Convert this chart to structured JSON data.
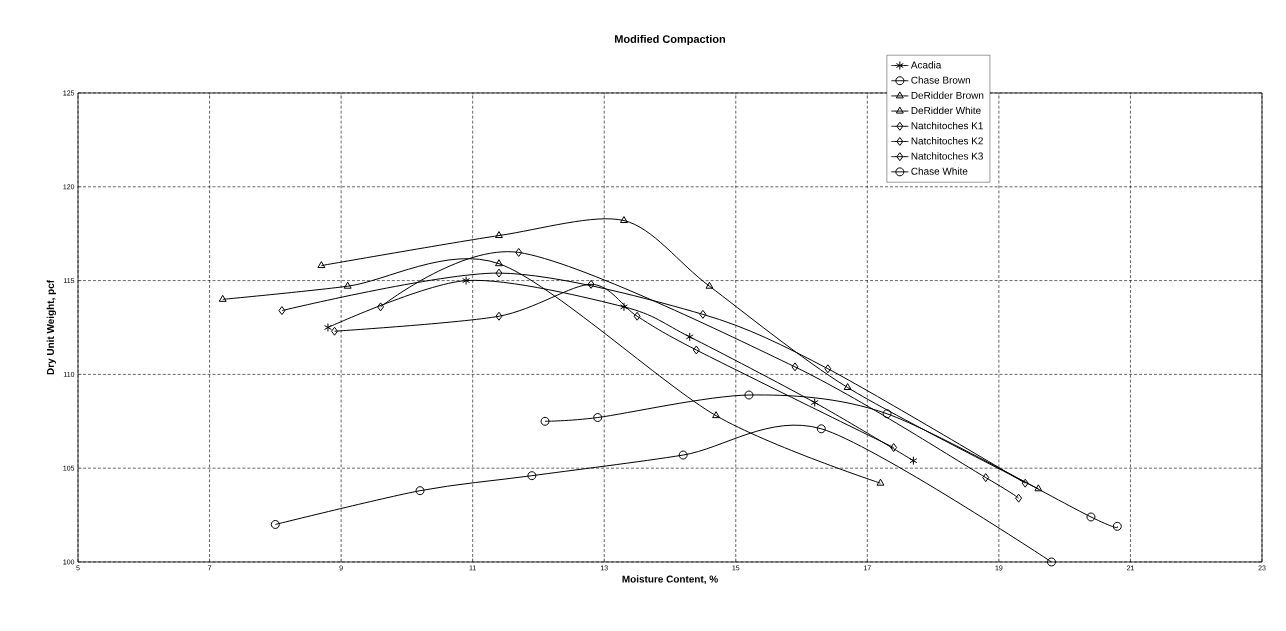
{
  "chart_data": {
    "type": "line",
    "title": "Modified Compaction",
    "xlabel": "Moisture Content, %",
    "ylabel": "Dry Unit Weight, pcf",
    "xlim": [
      5,
      23
    ],
    "xticks": [
      5,
      7,
      9,
      11,
      13,
      15,
      17,
      19,
      21,
      23
    ],
    "ylim": [
      100,
      125
    ],
    "yticks": [
      100,
      105,
      110,
      115,
      120,
      125
    ],
    "grid": true,
    "legend": "top right",
    "series": [
      {
        "name": "Acadia",
        "color": "#000000",
        "marker": "cross",
        "x": [
          8.8,
          10.9,
          13.3,
          14.3,
          16.2,
          17.7
        ],
        "values": [
          112.5,
          115.0,
          113.6,
          112.0,
          108.5,
          105.4
        ]
      },
      {
        "name": "Chase Brown",
        "color": "#000000",
        "marker": "circle",
        "x": [
          12.1,
          12.9,
          15.2,
          17.3,
          20.4,
          20.8
        ],
        "values": [
          107.5,
          107.7,
          108.9,
          107.9,
          102.4,
          101.9
        ]
      },
      {
        "name": "DeRidder Brown",
        "color": "#000000",
        "marker": "triangle",
        "x": [
          8.7,
          11.4,
          13.3,
          14.6,
          16.7,
          19.6
        ],
        "values": [
          115.8,
          117.4,
          118.2,
          114.7,
          109.3,
          103.9
        ]
      },
      {
        "name": "DeRidder White",
        "color": "#000000",
        "marker": "triangle",
        "x": [
          7.2,
          9.1,
          11.4,
          14.7,
          17.2
        ],
        "values": [
          114.0,
          114.7,
          115.9,
          107.8,
          104.2
        ]
      },
      {
        "name": "Natchitoches K1",
        "color": "#000000",
        "marker": "diamond",
        "x": [
          8.9,
          11.4,
          12.8,
          13.5,
          14.4,
          17.4
        ],
        "values": [
          112.3,
          113.1,
          114.8,
          113.1,
          111.3,
          106.1
        ]
      },
      {
        "name": "Natchitoches K2",
        "color": "#000000",
        "marker": "diamond",
        "x": [
          8.1,
          11.4,
          14.5,
          16.4,
          19.4
        ],
        "values": [
          113.4,
          115.4,
          113.2,
          110.3,
          104.2
        ]
      },
      {
        "name": "Natchitoches K3",
        "color": "#000000",
        "marker": "diamond",
        "x": [
          9.6,
          11.7,
          15.9,
          18.8,
          19.3
        ],
        "values": [
          113.6,
          116.5,
          110.4,
          104.5,
          103.4
        ]
      },
      {
        "name": "Chase White",
        "color": "#000000",
        "marker": "circle",
        "x": [
          8.0,
          10.2,
          11.9,
          14.2,
          16.3,
          19.8
        ],
        "values": [
          102.0,
          103.8,
          104.6,
          105.7,
          107.1,
          100.0
        ]
      }
    ]
  }
}
